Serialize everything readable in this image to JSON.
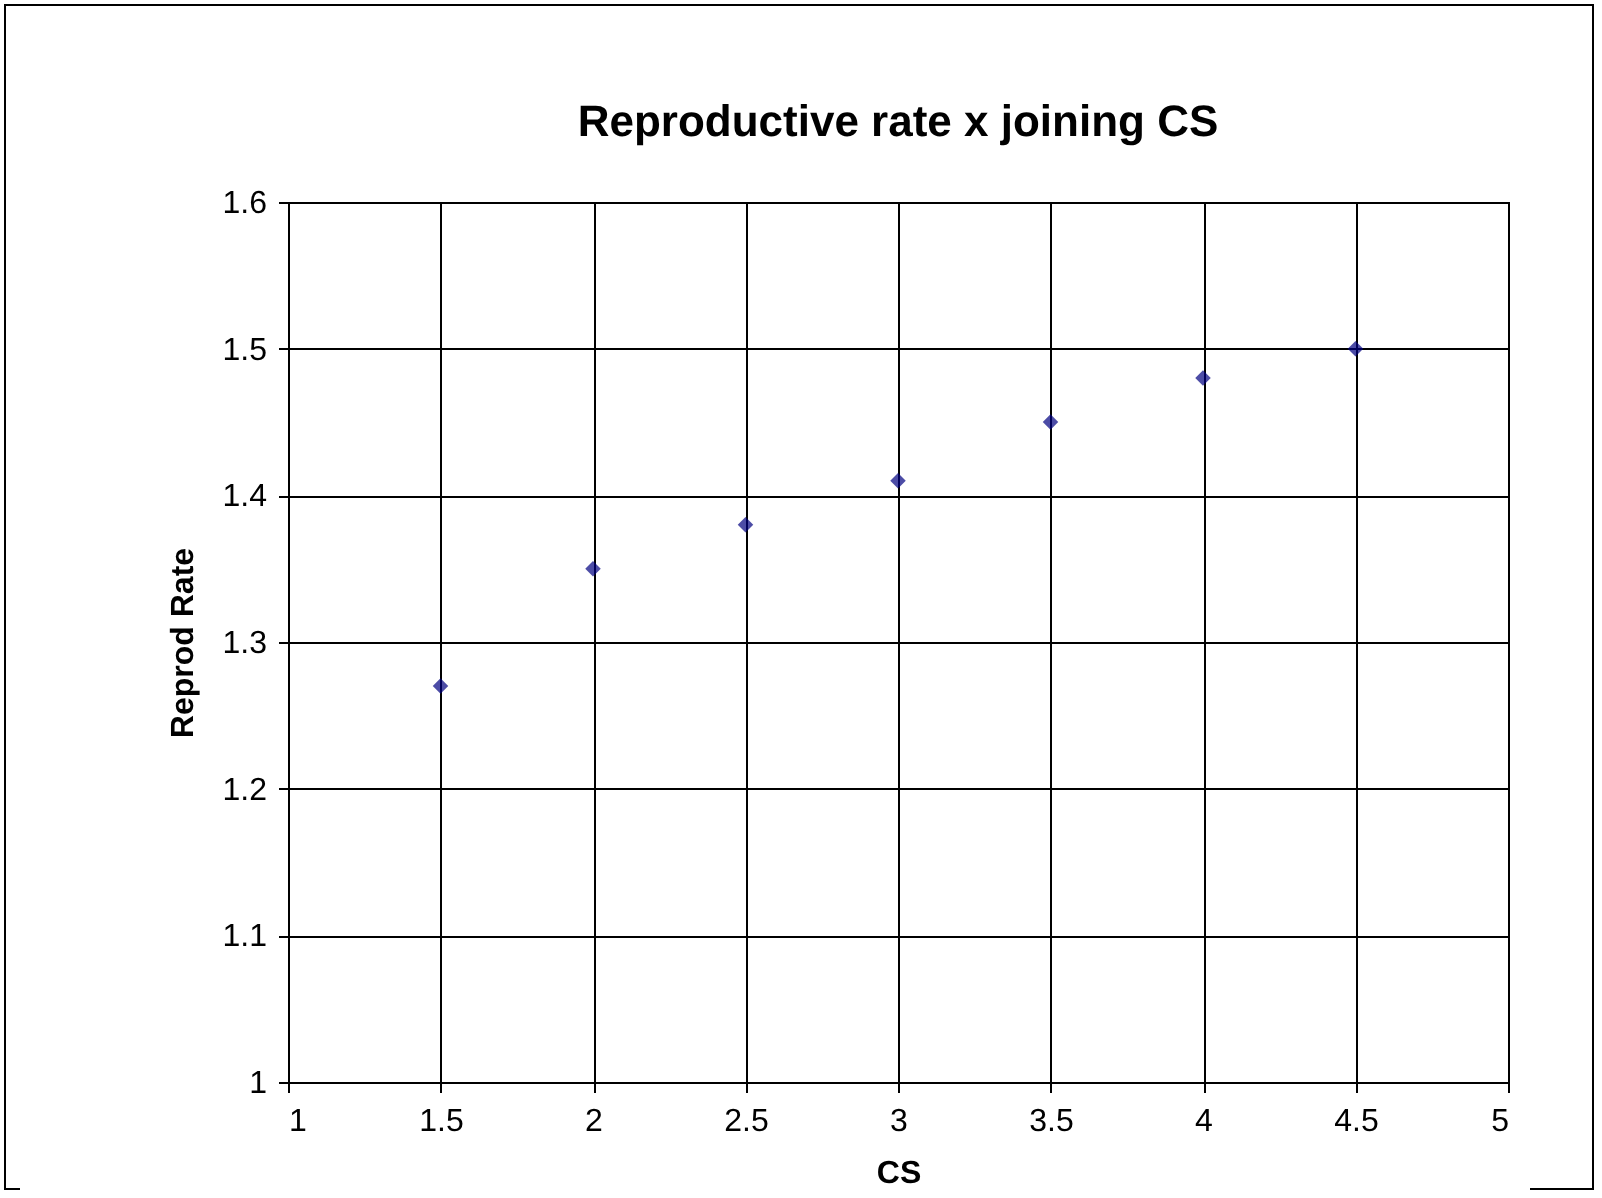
{
  "chart_data": {
    "type": "scatter",
    "title": "Reproductive rate x joining CS",
    "xlabel": "CS",
    "ylabel": "Reprod Rate",
    "x": [
      1.5,
      2,
      2.5,
      3,
      3.5,
      4,
      4.5
    ],
    "series": [
      {
        "color": "#000080",
        "values": [
          1.27,
          1.35,
          1.38,
          1.41,
          1.45,
          1.48,
          1.5
        ]
      }
    ],
    "xlim": [
      1,
      5
    ],
    "xticks": [
      1,
      1.5,
      2,
      2.5,
      3,
      3.5,
      4,
      4.5,
      5
    ],
    "ylim": [
      1,
      1.6
    ],
    "yticks": [
      1,
      1.1,
      1.2,
      1.3,
      1.4,
      1.5,
      1.6
    ],
    "grid": true,
    "marker": "diamond"
  }
}
